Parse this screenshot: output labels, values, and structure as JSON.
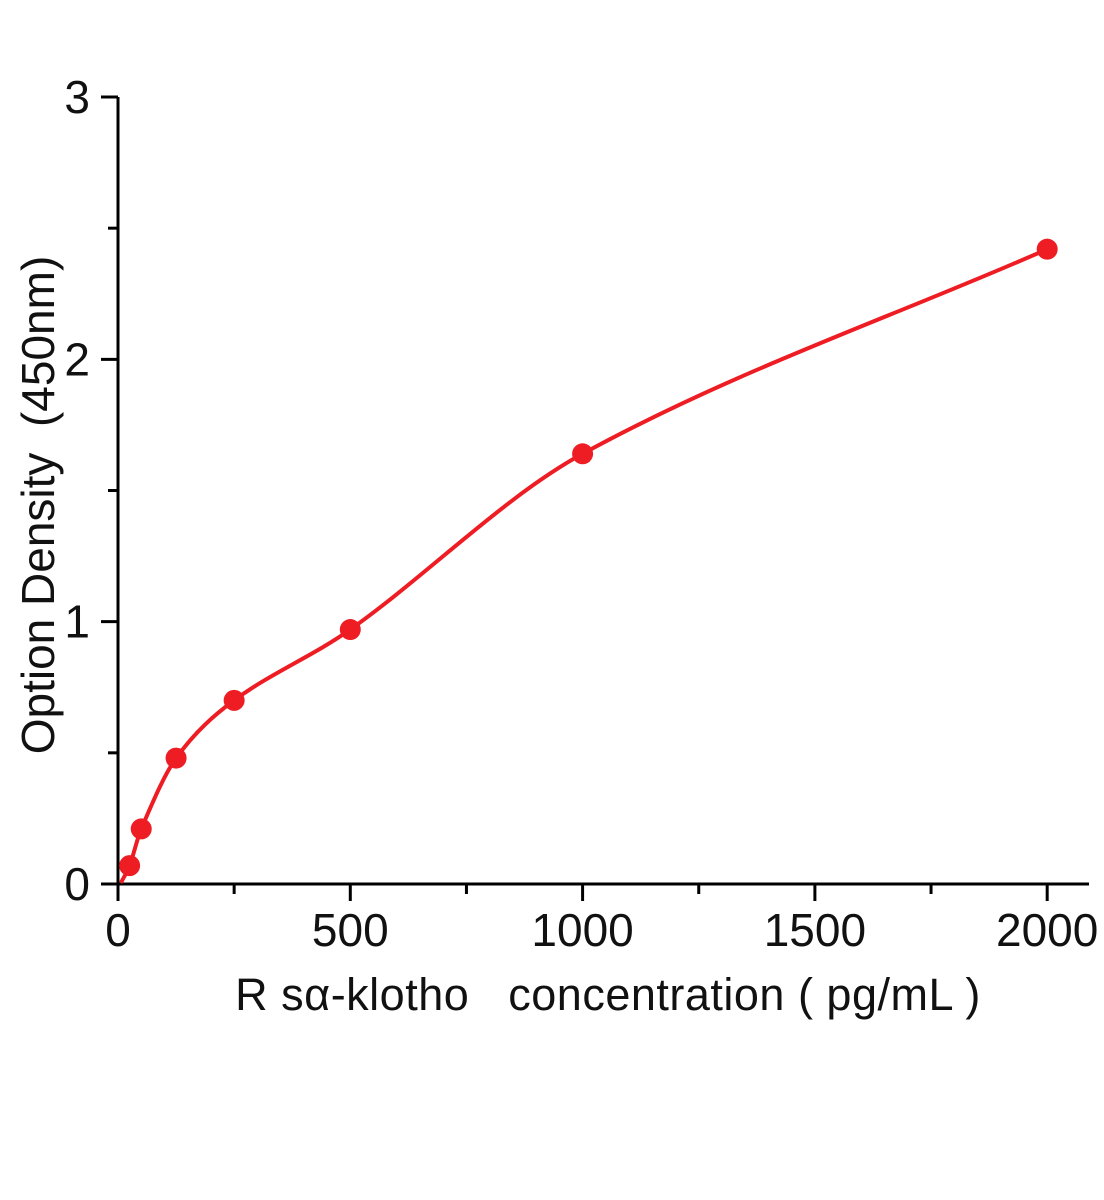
{
  "figure": {
    "background": "#ffffff"
  },
  "chart_data": {
    "type": "scatter",
    "title": "",
    "xlabel": "R sα-klotho   concentration ( pg/mL )",
    "ylabel": "Option Density  (450nm)",
    "x": [
      25,
      50,
      125,
      250,
      500,
      1000,
      2000
    ],
    "y": [
      0.07,
      0.21,
      0.48,
      0.7,
      0.97,
      1.64,
      2.42
    ],
    "curve_start": {
      "x": 8,
      "y": 0.01
    },
    "xlim": [
      0,
      2090
    ],
    "ylim": [
      0,
      3
    ],
    "x_major_ticks": [
      0,
      500,
      1000,
      1500,
      2000
    ],
    "x_minor_ticks": [
      250,
      750,
      1250,
      1750
    ],
    "y_major_ticks": [
      0,
      1,
      2,
      3
    ],
    "y_minor_ticks": [
      0.5,
      1.5,
      2.5
    ],
    "grid": false,
    "legend": null,
    "point_color": "#ee1c23",
    "line_color": "#ee1c23",
    "axis_color": "#000000"
  }
}
